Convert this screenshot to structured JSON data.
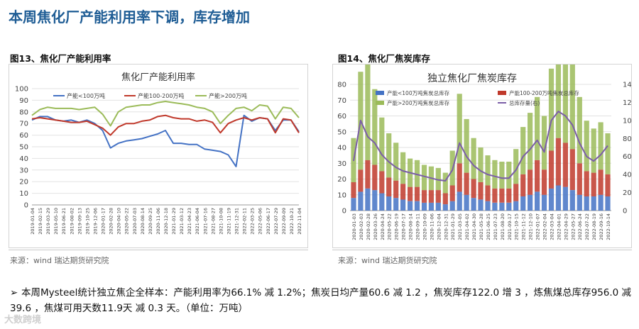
{
  "slide_title": "本周焦化厂产能利用率下调，库存增加",
  "left_panel": {
    "title": "图13、焦化厂产能利用率",
    "source": "来源：wind    瑞达期货研究院"
  },
  "right_panel": {
    "title": "图14、焦化厂焦炭库存",
    "source": "来源：wind    瑞达期货研究院"
  },
  "summary": "本周Mysteel统计独立焦企全样本：产能利用率为66.1% 减 1.2%；焦炭日均产量60.6 减 1.2 ，焦炭库存122.0 增 3 ，炼焦煤总库存956.0 减 39.6 ，焦煤可用天数11.9天 减 0.3 天。（单位：万吨）",
  "watermark": "大数跨境",
  "colors": {
    "title": "#1f5d95",
    "small": "#4472c4",
    "mid": "#c0392b",
    "large": "#9bbb59",
    "total": "#7b5ea7"
  },
  "chart_data": [
    {
      "type": "line",
      "title": "焦化厂产能利用率",
      "xlabel": "",
      "ylabel": "",
      "ylim": [
        0,
        100
      ],
      "yticks": [
        0,
        10,
        20,
        30,
        40,
        50,
        60,
        70,
        80,
        90,
        100
      ],
      "legend_position": "top",
      "grid": true,
      "x": [
        "2019-01-04",
        "2019-02-15",
        "2019-03-29",
        "2019-05-10",
        "2019-06-21",
        "2019-08-02",
        "2019-09-13",
        "2019-10-25",
        "2019-12-06",
        "2020-01-17",
        "2020-02-28",
        "2020-04-10",
        "2020-05-22",
        "2020-07-03",
        "2020-08-14",
        "2020-09-25",
        "2020-11-06",
        "2020-12-18",
        "2021-01-29",
        "2021-03-12",
        "2021-04-23",
        "2021-06-04",
        "2021-07-16",
        "2021-08-27",
        "2021-10-08",
        "2021-11-19",
        "2021-12-31",
        "2022-02-11",
        "2022-03-25",
        "2022-05-06",
        "2022-06-17",
        "2022-07-29",
        "2022-09-09",
        "2022-10-21",
        "2022-11-04"
      ],
      "series": [
        {
          "name": "产能<100万吨",
          "color": "#4472c4",
          "values": [
            73,
            76,
            76,
            73,
            72,
            73,
            71,
            73,
            70,
            64,
            49,
            53,
            55,
            56,
            57,
            59,
            61,
            64,
            53,
            53,
            52,
            52,
            48,
            47,
            46,
            43,
            33,
            77,
            72,
            75,
            74,
            64,
            73,
            73,
            63
          ]
        },
        {
          "name": "产能100-200万吨",
          "color": "#c0392b",
          "values": [
            74,
            75,
            74,
            73,
            72,
            71,
            71,
            72,
            69,
            66,
            60,
            67,
            70,
            70,
            72,
            73,
            76,
            77,
            75,
            74,
            74,
            72,
            73,
            71,
            62,
            70,
            73,
            75,
            73,
            75,
            74,
            62,
            74,
            73,
            62
          ]
        },
        {
          "name": "产能>200万吨",
          "color": "#9bbb59",
          "values": [
            77,
            82,
            84,
            83,
            83,
            83,
            82,
            83,
            84,
            78,
            68,
            80,
            84,
            85,
            86,
            86,
            88,
            89,
            88,
            87,
            86,
            84,
            83,
            80,
            70,
            77,
            83,
            84,
            81,
            86,
            85,
            74,
            84,
            83,
            75
          ]
        }
      ]
    },
    {
      "type": "bar",
      "title": "独立焦化厂焦炭库存",
      "ylim": [
        0,
        80
      ],
      "yticks": [
        0,
        10,
        20,
        30,
        40,
        50,
        60,
        70,
        80
      ],
      "y2lim": [
        0,
        140
      ],
      "y2ticks": [
        0,
        20,
        40,
        60,
        80,
        100,
        120,
        140
      ],
      "legend_position": "top",
      "grid": true,
      "x": [
        "2020-01-03",
        "2020-02-03",
        "2020-02-28",
        "2020-03-26",
        "2020-04-24",
        "2020-05-22",
        "2020-06-19",
        "2020-07-17",
        "2020-08-14",
        "2020-09-11",
        "2020-10-09",
        "2020-11-06",
        "2020-12-04",
        "2020-12-31",
        "2021-01-29",
        "2021-03-05",
        "2021-04-02",
        "2021-04-30",
        "2021-05-28",
        "2021-06-25",
        "2021-07-23",
        "2021-08-20",
        "2021-09-17",
        "2021-10-15",
        "2021-11-12",
        "2021-12-10",
        "2022-01-07",
        "2022-02-04",
        "2022-03-04",
        "2022-04-01",
        "2022-04-29",
        "2022-05-27",
        "2022-06-24",
        "2022-07-22",
        "2022-08-19",
        "2022-09-16",
        "2022-10-14"
      ],
      "series": [
        {
          "name": "产能<100万吨焦炭总库存",
          "axis": "left",
          "type": "bar",
          "color": "#4472c4",
          "values": [
            8,
            12,
            14,
            13,
            11,
            9,
            8,
            7,
            6,
            6,
            5,
            5,
            5,
            4,
            6,
            12,
            10,
            8,
            7,
            6,
            5,
            5,
            5,
            6,
            9,
            10,
            12,
            10,
            14,
            16,
            15,
            13,
            10,
            9,
            9,
            10,
            9
          ]
        },
        {
          "name": "产能100-200万吨焦炭总库存",
          "axis": "left",
          "type": "bar",
          "color": "#c0392b",
          "values": [
            10,
            14,
            18,
            16,
            14,
            12,
            11,
            10,
            9,
            9,
            8,
            8,
            8,
            7,
            10,
            18,
            14,
            12,
            11,
            10,
            9,
            9,
            9,
            11,
            14,
            16,
            20,
            16,
            24,
            30,
            28,
            26,
            20,
            16,
            15,
            16,
            14
          ]
        },
        {
          "name": "产能>200万吨焦炭总库存",
          "axis": "left",
          "type": "bar",
          "color": "#9bbb59",
          "values": [
            28,
            62,
            70,
            48,
            34,
            28,
            24,
            20,
            18,
            17,
            16,
            15,
            14,
            13,
            22,
            44,
            34,
            26,
            22,
            19,
            18,
            17,
            17,
            22,
            30,
            36,
            40,
            34,
            52,
            60,
            58,
            54,
            42,
            32,
            28,
            30,
            26
          ]
        },
        {
          "name": "总库存量(右)",
          "axis": "right",
          "type": "line",
          "color": "#7b5ea7",
          "values": [
            55,
            100,
            82,
            75,
            62,
            54,
            48,
            44,
            42,
            40,
            38,
            36,
            34,
            33,
            45,
            75,
            60,
            50,
            44,
            40,
            38,
            36,
            36,
            45,
            60,
            68,
            78,
            65,
            100,
            110,
            105,
            95,
            75,
            60,
            55,
            62,
            72
          ]
        }
      ]
    }
  ]
}
